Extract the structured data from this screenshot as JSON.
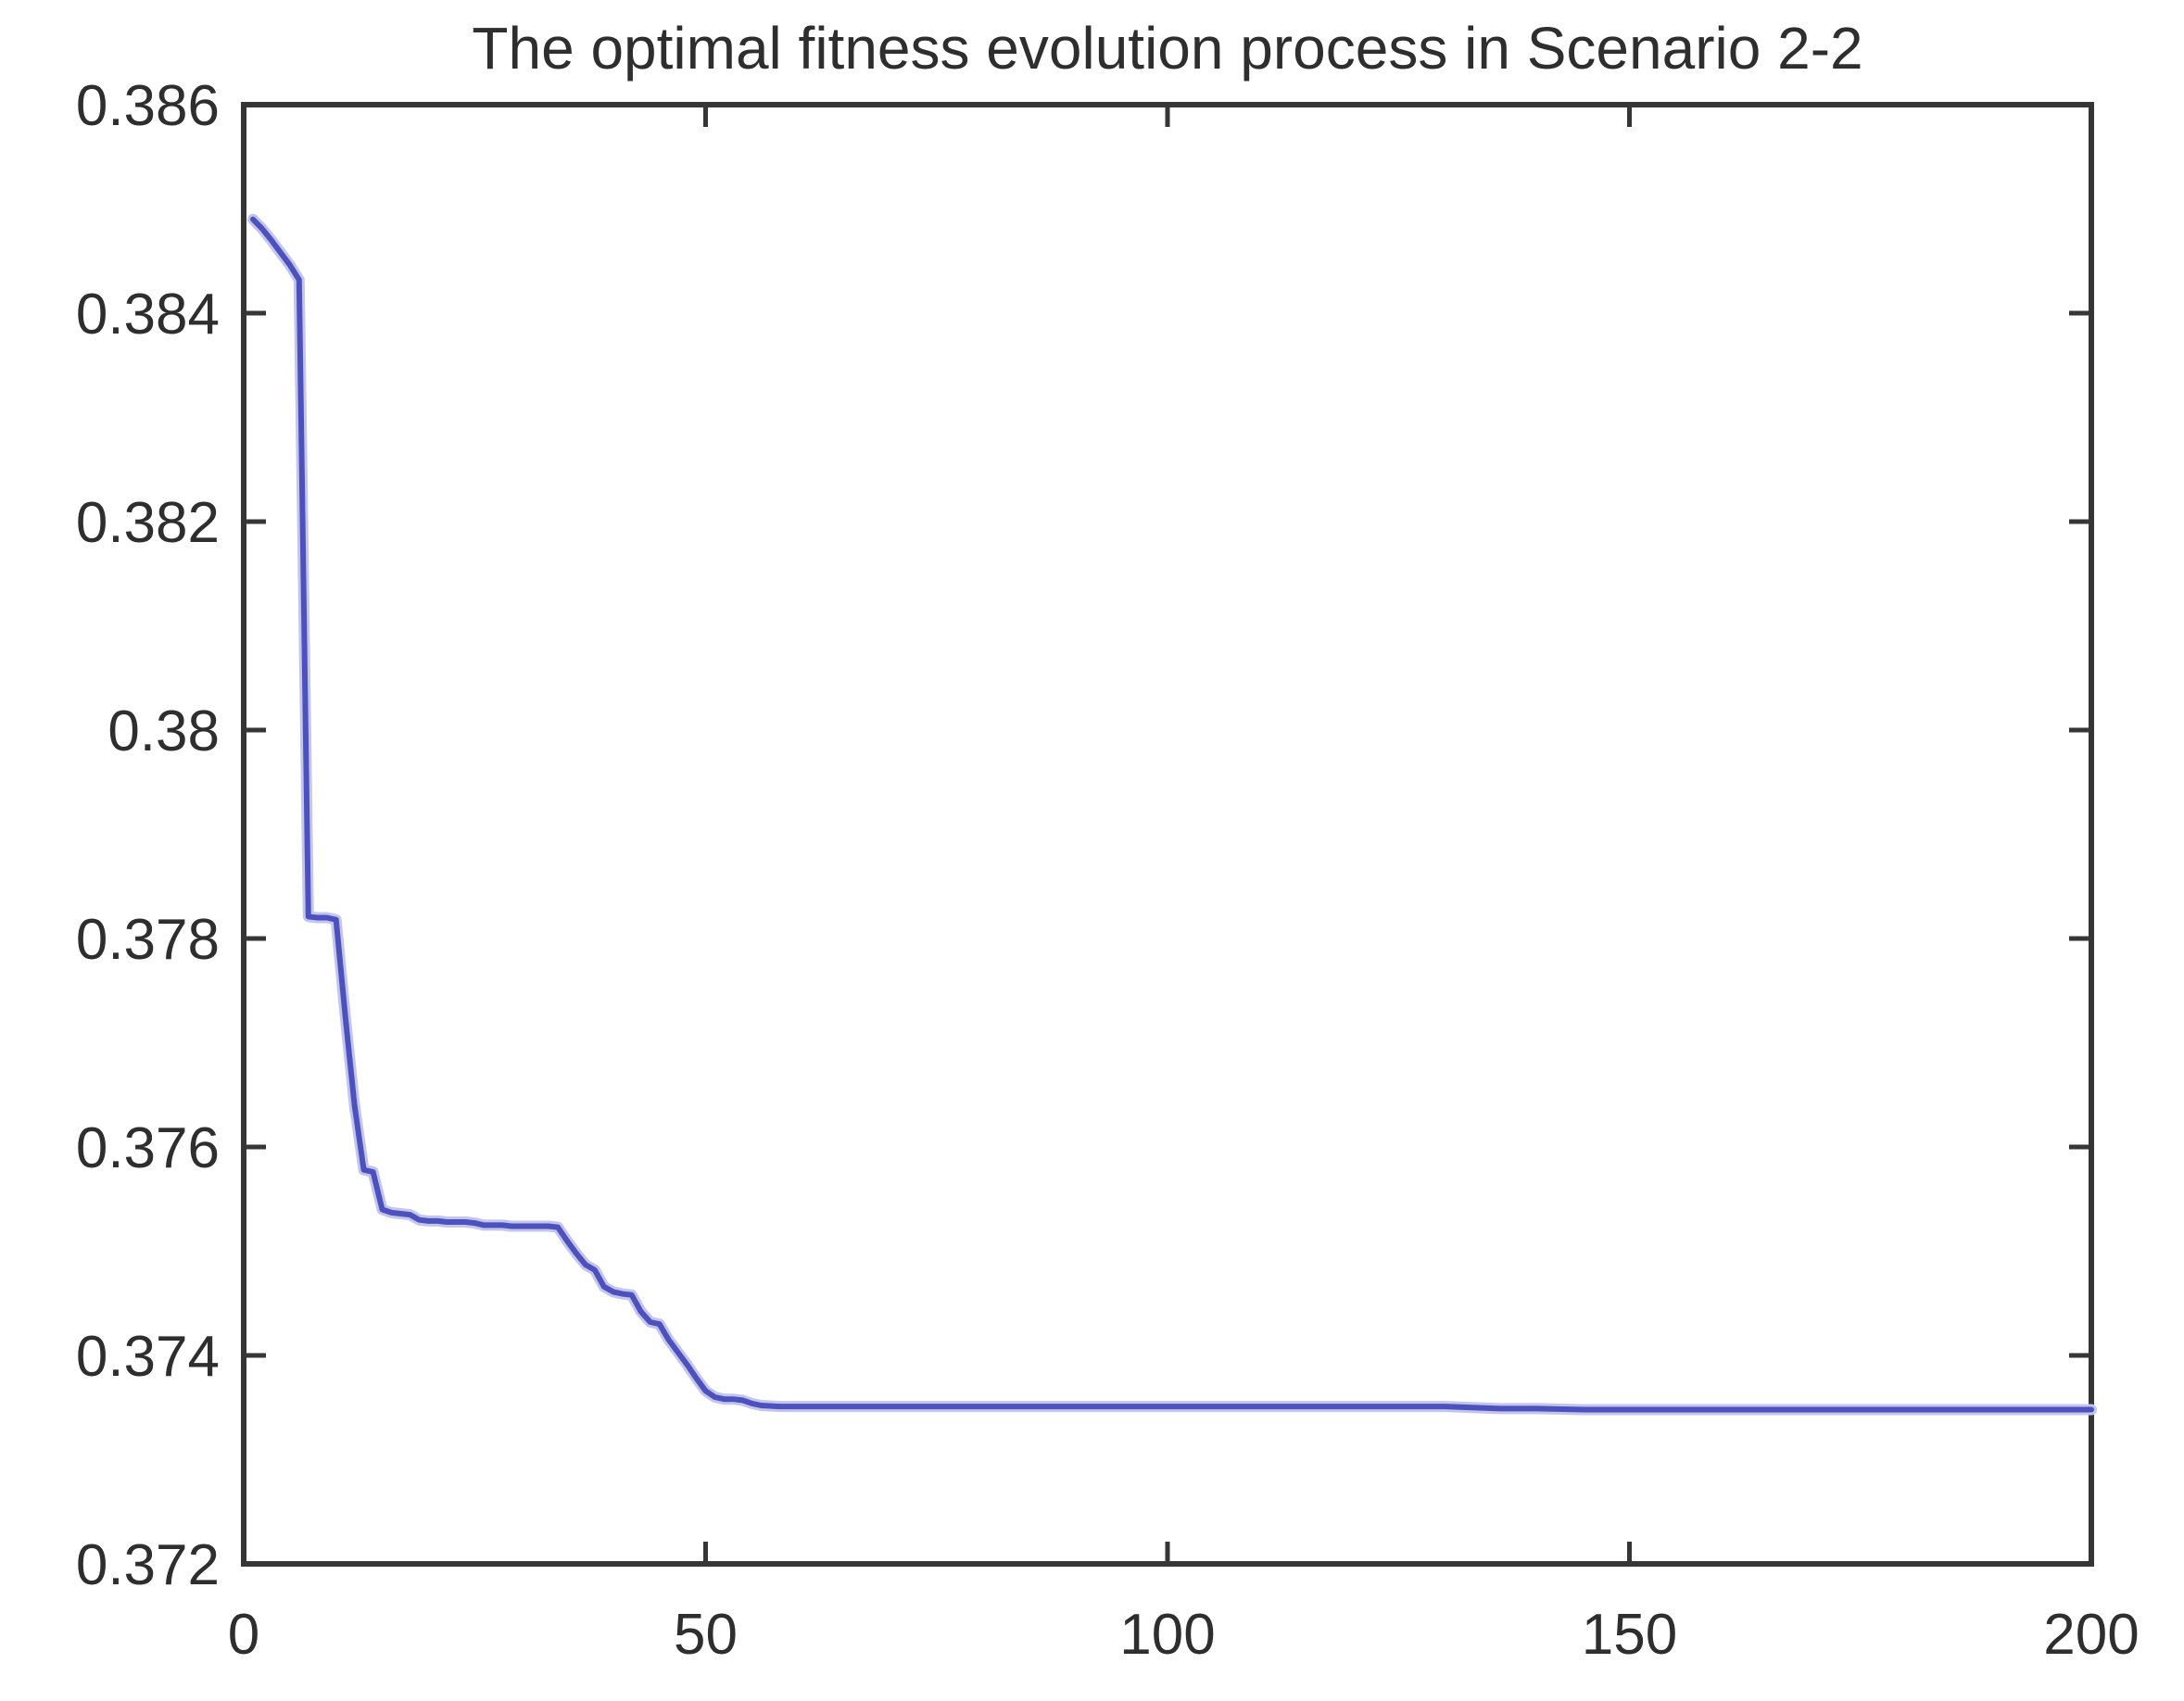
{
  "figure": {
    "background": "#ffffff"
  },
  "chart_data": {
    "type": "line",
    "title": "The optimal fitness evolution process in Scenario 2-2",
    "xlabel": "",
    "ylabel": "",
    "xlim": [
      0,
      200
    ],
    "ylim": [
      0.372,
      0.386
    ],
    "grid": false,
    "box": true,
    "legend_position": "none",
    "tick_direction": "in",
    "line_color": "#4d51bd",
    "line_halo_color": "#c3c5ea",
    "axis_color": "#363636",
    "text_color": "#2e2e2e",
    "background": "#ffffff",
    "x_ticks": {
      "values": [
        0,
        50,
        100,
        150,
        200
      ],
      "labels": [
        "0",
        "50",
        "100",
        "150",
        "200"
      ]
    },
    "y_ticks": {
      "values": [
        0.372,
        0.374,
        0.376,
        0.378,
        0.38,
        0.382,
        0.384,
        0.386
      ],
      "labels": [
        "0.372",
        "0.374",
        "0.376",
        "0.378",
        "0.38",
        "0.382",
        "0.384",
        "0.386"
      ]
    },
    "series": [
      {
        "name": "optimal fitness",
        "points": [
          [
            1,
            0.3849
          ],
          [
            2,
            0.38481
          ],
          [
            3,
            0.3847
          ],
          [
            4,
            0.38458
          ],
          [
            5,
            0.38446
          ],
          [
            6,
            0.38432
          ],
          [
            7,
            0.37821
          ],
          [
            8,
            0.3782
          ],
          [
            9,
            0.3782
          ],
          [
            10,
            0.37818
          ],
          [
            11,
            0.37725
          ],
          [
            12,
            0.3764
          ],
          [
            13,
            0.37578
          ],
          [
            14,
            0.37576
          ],
          [
            15,
            0.3754
          ],
          [
            16,
            0.37537
          ],
          [
            17,
            0.37536
          ],
          [
            18,
            0.37535
          ],
          [
            19,
            0.3753
          ],
          [
            20,
            0.37529
          ],
          [
            21,
            0.37529
          ],
          [
            22,
            0.37528
          ],
          [
            23,
            0.37528
          ],
          [
            24,
            0.37528
          ],
          [
            25,
            0.37527
          ],
          [
            26,
            0.37525
          ],
          [
            27,
            0.37525
          ],
          [
            28,
            0.37525
          ],
          [
            29,
            0.37524
          ],
          [
            30,
            0.37524
          ],
          [
            31,
            0.37524
          ],
          [
            32,
            0.37524
          ],
          [
            33,
            0.37524
          ],
          [
            34,
            0.37523
          ],
          [
            35,
            0.3751
          ],
          [
            36,
            0.37498
          ],
          [
            37,
            0.37487
          ],
          [
            38,
            0.37482
          ],
          [
            39,
            0.37466
          ],
          [
            40,
            0.37461
          ],
          [
            41,
            0.37459
          ],
          [
            42,
            0.37458
          ],
          [
            43,
            0.37442
          ],
          [
            44,
            0.37432
          ],
          [
            45,
            0.3743
          ],
          [
            46,
            0.37415
          ],
          [
            47,
            0.37403
          ],
          [
            48,
            0.37391
          ],
          [
            49,
            0.37378
          ],
          [
            50,
            0.37366
          ],
          [
            51,
            0.3736
          ],
          [
            52,
            0.37358
          ],
          [
            53,
            0.37358
          ],
          [
            54,
            0.37357
          ],
          [
            55,
            0.37354
          ],
          [
            56,
            0.37352
          ],
          [
            58,
            0.37351
          ],
          [
            60,
            0.37351
          ],
          [
            65,
            0.37351
          ],
          [
            70,
            0.37351
          ],
          [
            75,
            0.37351
          ],
          [
            80,
            0.37351
          ],
          [
            85,
            0.37351
          ],
          [
            90,
            0.37351
          ],
          [
            95,
            0.37351
          ],
          [
            100,
            0.37351
          ],
          [
            105,
            0.37351
          ],
          [
            110,
            0.37351
          ],
          [
            115,
            0.37351
          ],
          [
            120,
            0.37351
          ],
          [
            125,
            0.37351
          ],
          [
            130,
            0.37351
          ],
          [
            133,
            0.3735
          ],
          [
            136,
            0.37349
          ],
          [
            140,
            0.37349
          ],
          [
            145,
            0.37348
          ],
          [
            150,
            0.37348
          ],
          [
            160,
            0.37348
          ],
          [
            170,
            0.37348
          ],
          [
            180,
            0.37348
          ],
          [
            190,
            0.37348
          ],
          [
            200,
            0.37348
          ]
        ]
      }
    ]
  }
}
